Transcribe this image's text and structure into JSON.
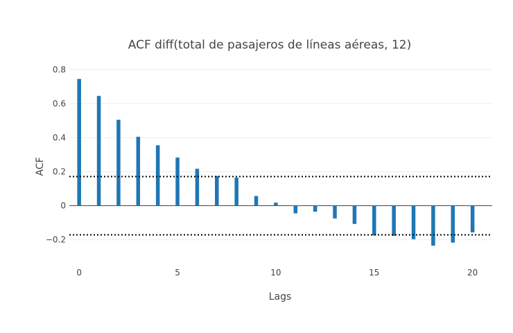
{
  "chart_data": {
    "type": "bar",
    "title": "ACF diff(total de pasajeros de líneas aéreas, 12)",
    "xlabel": "Lags",
    "ylabel": "ACF",
    "x": [
      0,
      1,
      2,
      3,
      4,
      5,
      6,
      7,
      8,
      9,
      10,
      11,
      12,
      13,
      14,
      15,
      16,
      17,
      18,
      19,
      20
    ],
    "values": [
      0.745,
      0.645,
      0.505,
      0.405,
      0.355,
      0.283,
      0.217,
      0.175,
      0.165,
      0.057,
      0.018,
      -0.045,
      -0.035,
      -0.075,
      -0.107,
      -0.175,
      -0.177,
      -0.197,
      -0.235,
      -0.217,
      -0.157
    ],
    "confidence_bounds": [
      0.171,
      -0.171
    ],
    "xlim": [
      -0.5,
      21
    ],
    "ylim": [
      -0.32,
      0.85
    ],
    "x_ticks": [
      0,
      5,
      10,
      15,
      20
    ],
    "x_tick_labels": [
      "0",
      "5",
      "10",
      "15",
      "20"
    ],
    "y_ticks": [
      0.8,
      0.6,
      0.4,
      0.2,
      0,
      -0.2
    ],
    "y_tick_labels": [
      "0.8",
      "0.6",
      "0.4",
      "0.2",
      "0",
      "−0.2"
    ],
    "grid": true,
    "colors": {
      "bar": "#1f77b4",
      "grid": "#eeeeee",
      "zeroline": "#444444",
      "bounds": "#000000"
    }
  }
}
